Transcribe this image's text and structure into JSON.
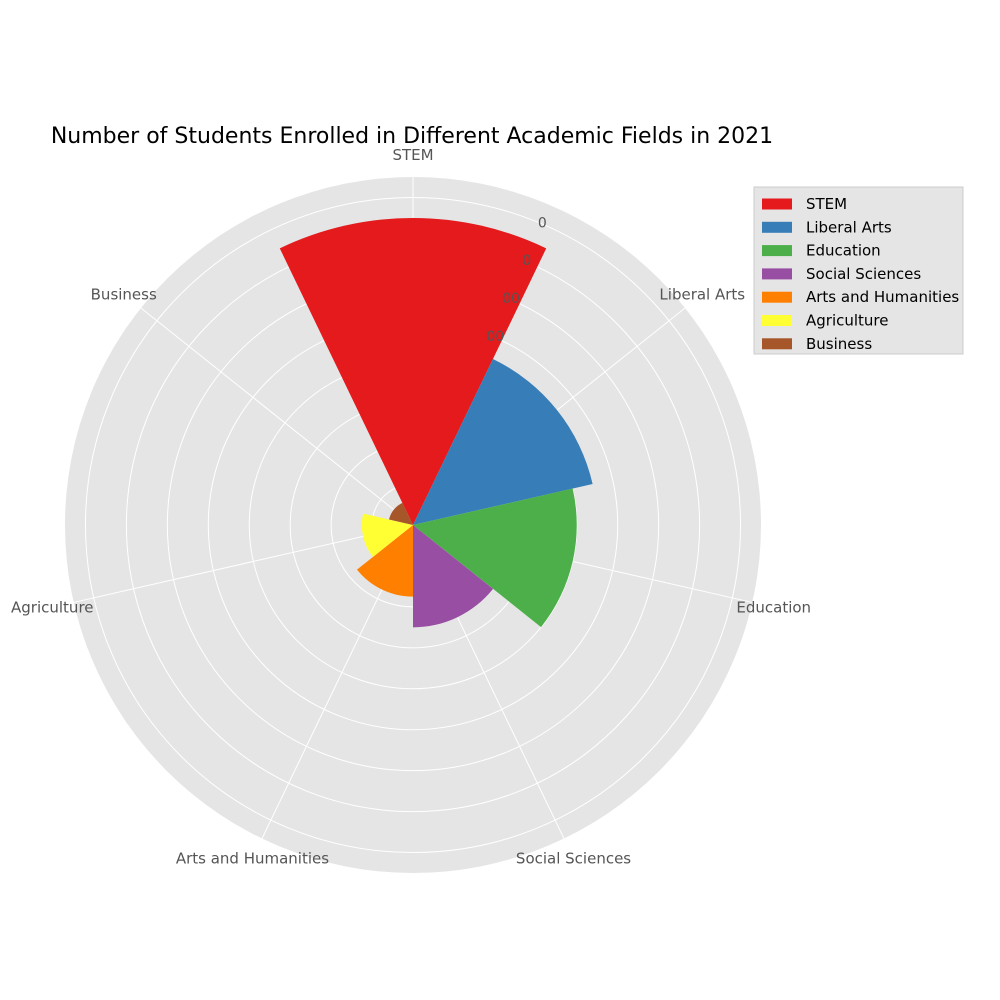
{
  "chart_data": {
    "type": "polar-bar",
    "title": "Number of Students Enrolled in Different Academic Fields in 2021",
    "categories": [
      "STEM",
      "Liberal Arts",
      "Education",
      "Social Sciences",
      "Arts and Humanities",
      "Agriculture",
      "Business"
    ],
    "values": [
      1500,
      900,
      800,
      500,
      350,
      250,
      120
    ],
    "colors": [
      "#e41a1c",
      "#377eb8",
      "#4daf4a",
      "#984ea3",
      "#ff7f00",
      "#ffff33",
      "#a65628"
    ],
    "rmax": 1700,
    "radial_ticks": [
      200,
      400,
      600,
      800,
      1000,
      1200,
      1400,
      1600
    ],
    "radial_tick_labels": [
      "",
      "",
      "",
      "",
      "00",
      "00",
      "0",
      "0"
    ],
    "grid": true,
    "legend": {
      "position": "top-right",
      "entries": [
        "STEM",
        "Liberal Arts",
        "Education",
        "Social Sciences",
        "Arts and Humanities",
        "Agriculture",
        "Business"
      ]
    }
  }
}
